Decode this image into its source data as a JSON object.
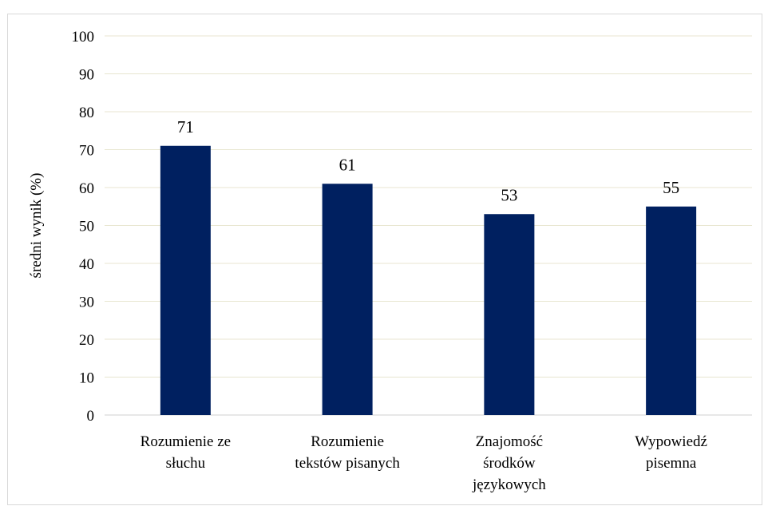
{
  "chart_data": {
    "type": "bar",
    "title": "",
    "xlabel": "",
    "ylabel": "średni wynik (%)",
    "ylim": [
      0,
      100
    ],
    "yticks": [
      0,
      10,
      20,
      30,
      40,
      50,
      60,
      70,
      80,
      90,
      100
    ],
    "grid": true,
    "legend": "none",
    "categories": [
      [
        "Rozumienie ze",
        "słuchu"
      ],
      [
        "Rozumienie",
        "tekstów pisanych"
      ],
      [
        "Znajomość",
        "środków",
        "językowych"
      ],
      [
        "Wypowiedź",
        "pisemna"
      ]
    ],
    "values": [
      71,
      61,
      53,
      55
    ],
    "bar_color": "#002060",
    "grid_color": "#e8e6d0"
  }
}
